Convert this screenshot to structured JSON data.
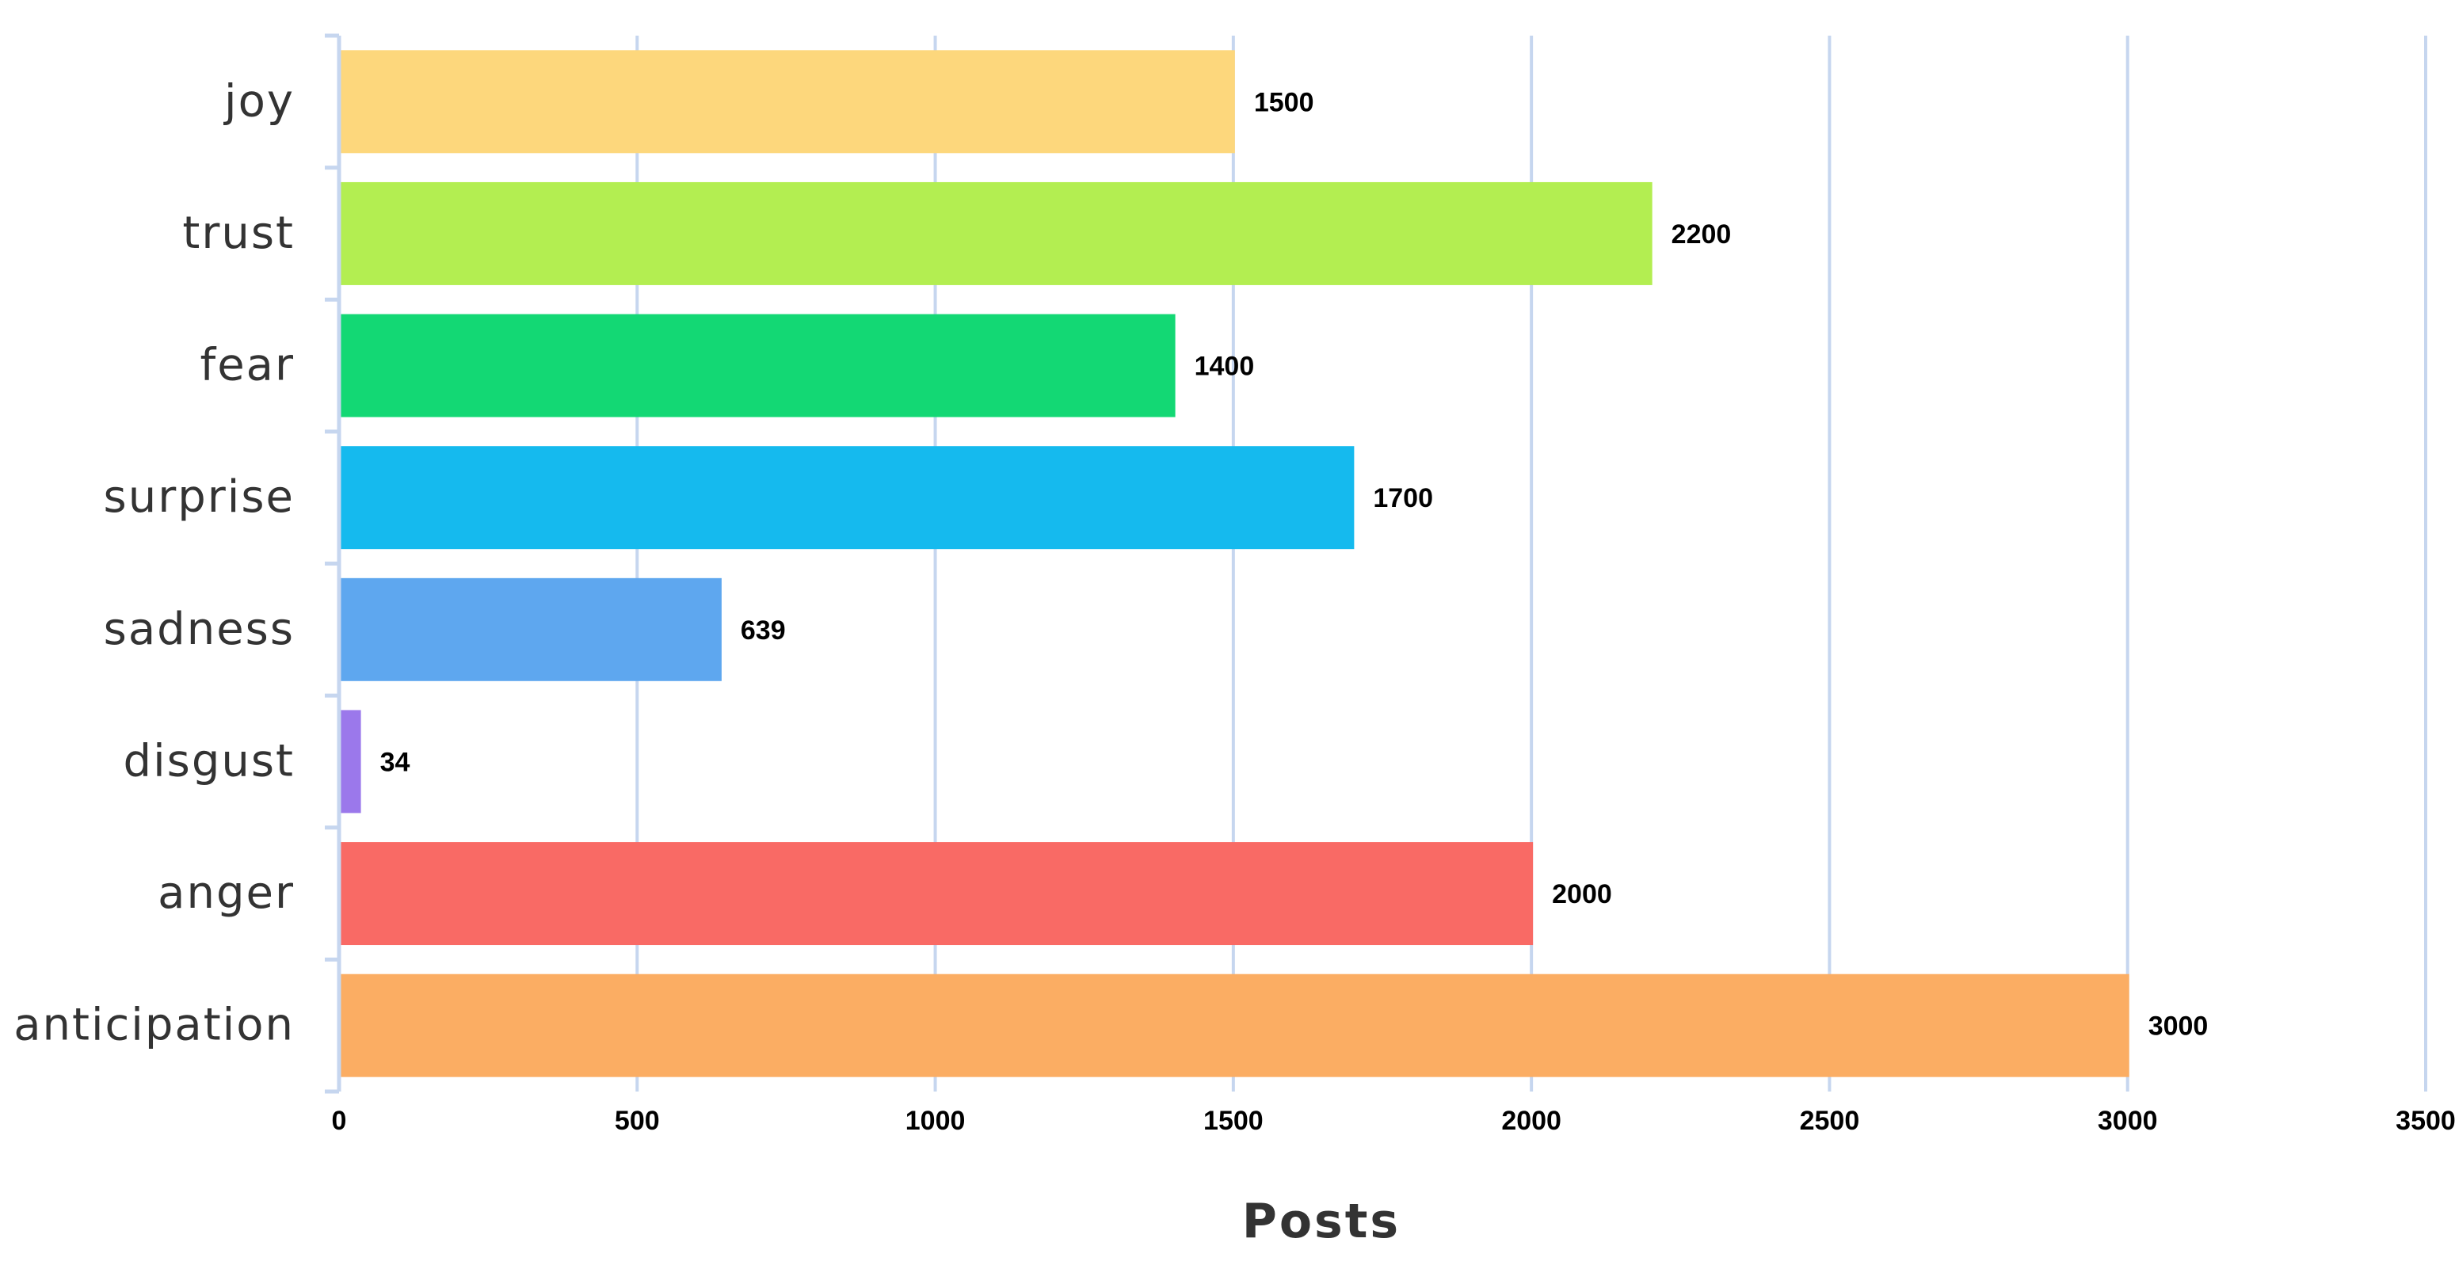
{
  "chart_data": {
    "type": "bar",
    "orientation": "horizontal",
    "categories": [
      "joy",
      "trust",
      "fear",
      "surprise",
      "sadness",
      "disgust",
      "anger",
      "anticipation"
    ],
    "values": [
      1500,
      2200,
      1400,
      1700,
      639,
      34,
      2000,
      3000
    ],
    "value_labels": [
      "1500",
      "2200",
      "1400",
      "1700",
      "639",
      "34",
      "2000",
      "3000"
    ],
    "colors": [
      "#fdd77c",
      "#b3ee51",
      "#13d874",
      "#15baee",
      "#5ea7ef",
      "#9b78eb",
      "#f96a65",
      "#fbad63"
    ],
    "xlabel": "Posts",
    "ylabel": "",
    "xlim": [
      0,
      3500
    ],
    "xticks": [
      0,
      500,
      1000,
      1500,
      2000,
      2500,
      3000,
      3500
    ],
    "xtick_labels": [
      "0",
      "500",
      "1000",
      "1500",
      "2000",
      "2500",
      "3000",
      "3500"
    ],
    "grid": true,
    "legend": "none"
  }
}
